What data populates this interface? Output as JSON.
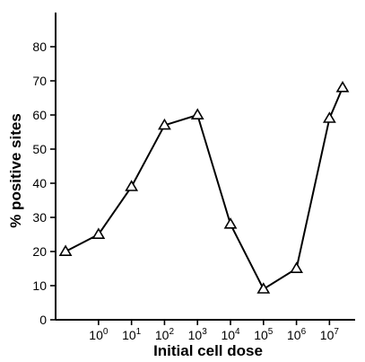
{
  "chart_data": {
    "type": "line",
    "title": "",
    "xlabel": "Initial cell dose",
    "ylabel": "% positive sites",
    "x_scale": "log10",
    "x_ticks": [
      {
        "base": "10",
        "exp": "0",
        "value": 1
      },
      {
        "base": "10",
        "exp": "1",
        "value": 10
      },
      {
        "base": "10",
        "exp": "2",
        "value": 100
      },
      {
        "base": "10",
        "exp": "3",
        "value": 1000
      },
      {
        "base": "10",
        "exp": "4",
        "value": 10000
      },
      {
        "base": "10",
        "exp": "5",
        "value": 100000
      },
      {
        "base": "10",
        "exp": "6",
        "value": 1000000
      },
      {
        "base": "10",
        "exp": "7",
        "value": 10000000
      }
    ],
    "y_ticks": [
      "0",
      "10",
      "20",
      "30",
      "40",
      "50",
      "60",
      "70",
      "80"
    ],
    "xlim": [
      0.05,
      60000000
    ],
    "ylim": [
      0,
      90
    ],
    "grid": false,
    "series": [
      {
        "marker": "triangle",
        "x": [
          0.1,
          1,
          10,
          100,
          1000,
          10000,
          100000,
          1000000,
          10000000,
          25000000
        ],
        "y": [
          20,
          25,
          39,
          57,
          60,
          28,
          9,
          15,
          59,
          68
        ]
      }
    ]
  }
}
